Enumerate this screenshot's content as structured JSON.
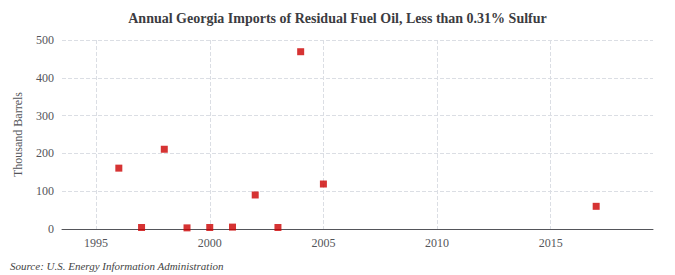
{
  "chart_data": {
    "type": "scatter",
    "title": "Annual Georgia Imports of Residual Fuel Oil, Less than 0.31% Sulfur",
    "ylabel": "Thousand Barrels",
    "annotations": [
      "Source: U.S. Energy Information Administration"
    ],
    "x": [
      1996,
      1997,
      1998,
      1999,
      2000,
      2001,
      2002,
      2003,
      2004,
      2005,
      2017
    ],
    "values": [
      161,
      4,
      211,
      3,
      4,
      5,
      90,
      4,
      469,
      119,
      60
    ],
    "color": "#cc0000",
    "marker": "square",
    "xlim": [
      1993.5,
      2019.5
    ],
    "xticks": [
      1995,
      2000,
      2005,
      2010,
      2015
    ],
    "ylim": [
      0,
      500
    ],
    "yticks": [
      0,
      100,
      200,
      300,
      400,
      500
    ],
    "grid": true
  }
}
